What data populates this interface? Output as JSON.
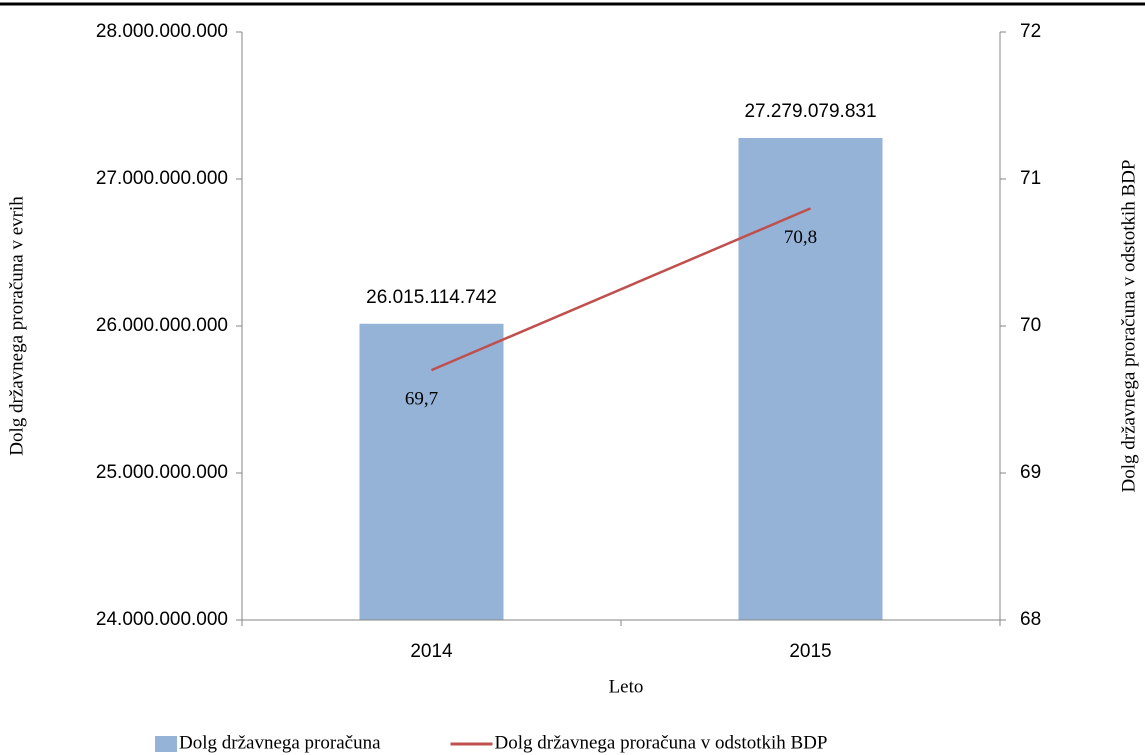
{
  "chart_data": {
    "type": "bar",
    "x_label": "Leto",
    "y_label": "Dolg državnega proračuna v evrih",
    "y2_label": "Dolg državnega proračuna v odstotkih BDP",
    "categories": [
      "2014",
      "2015"
    ],
    "series": [
      {
        "name": "Dolg državnega proračuna",
        "type": "bar",
        "color": "#95b3d7",
        "values": [
          26015114742,
          27279079831
        ],
        "value_labels": [
          "26.015.114.742",
          "27.279.079.831"
        ]
      },
      {
        "name": "Dolg državnega proračuna v odstotkih BDP",
        "type": "line",
        "axis": "y2",
        "color": "#c0504d",
        "values": [
          69.7,
          70.8
        ],
        "value_labels": [
          "69,7",
          "70,8"
        ]
      }
    ],
    "ylim": [
      24000000000,
      28000000000
    ],
    "yticks": [
      {
        "value": 24000000000,
        "label": "24.000.000.000"
      },
      {
        "value": 25000000000,
        "label": "25.000.000.000"
      },
      {
        "value": 26000000000,
        "label": "26.000.000.000"
      },
      {
        "value": 27000000000,
        "label": "27.000.000.000"
      },
      {
        "value": 28000000000,
        "label": "28.000.000.000"
      }
    ],
    "y2lim": [
      68,
      72
    ],
    "y2ticks": [
      68,
      69,
      70,
      71,
      72
    ],
    "legend": "bottom"
  }
}
